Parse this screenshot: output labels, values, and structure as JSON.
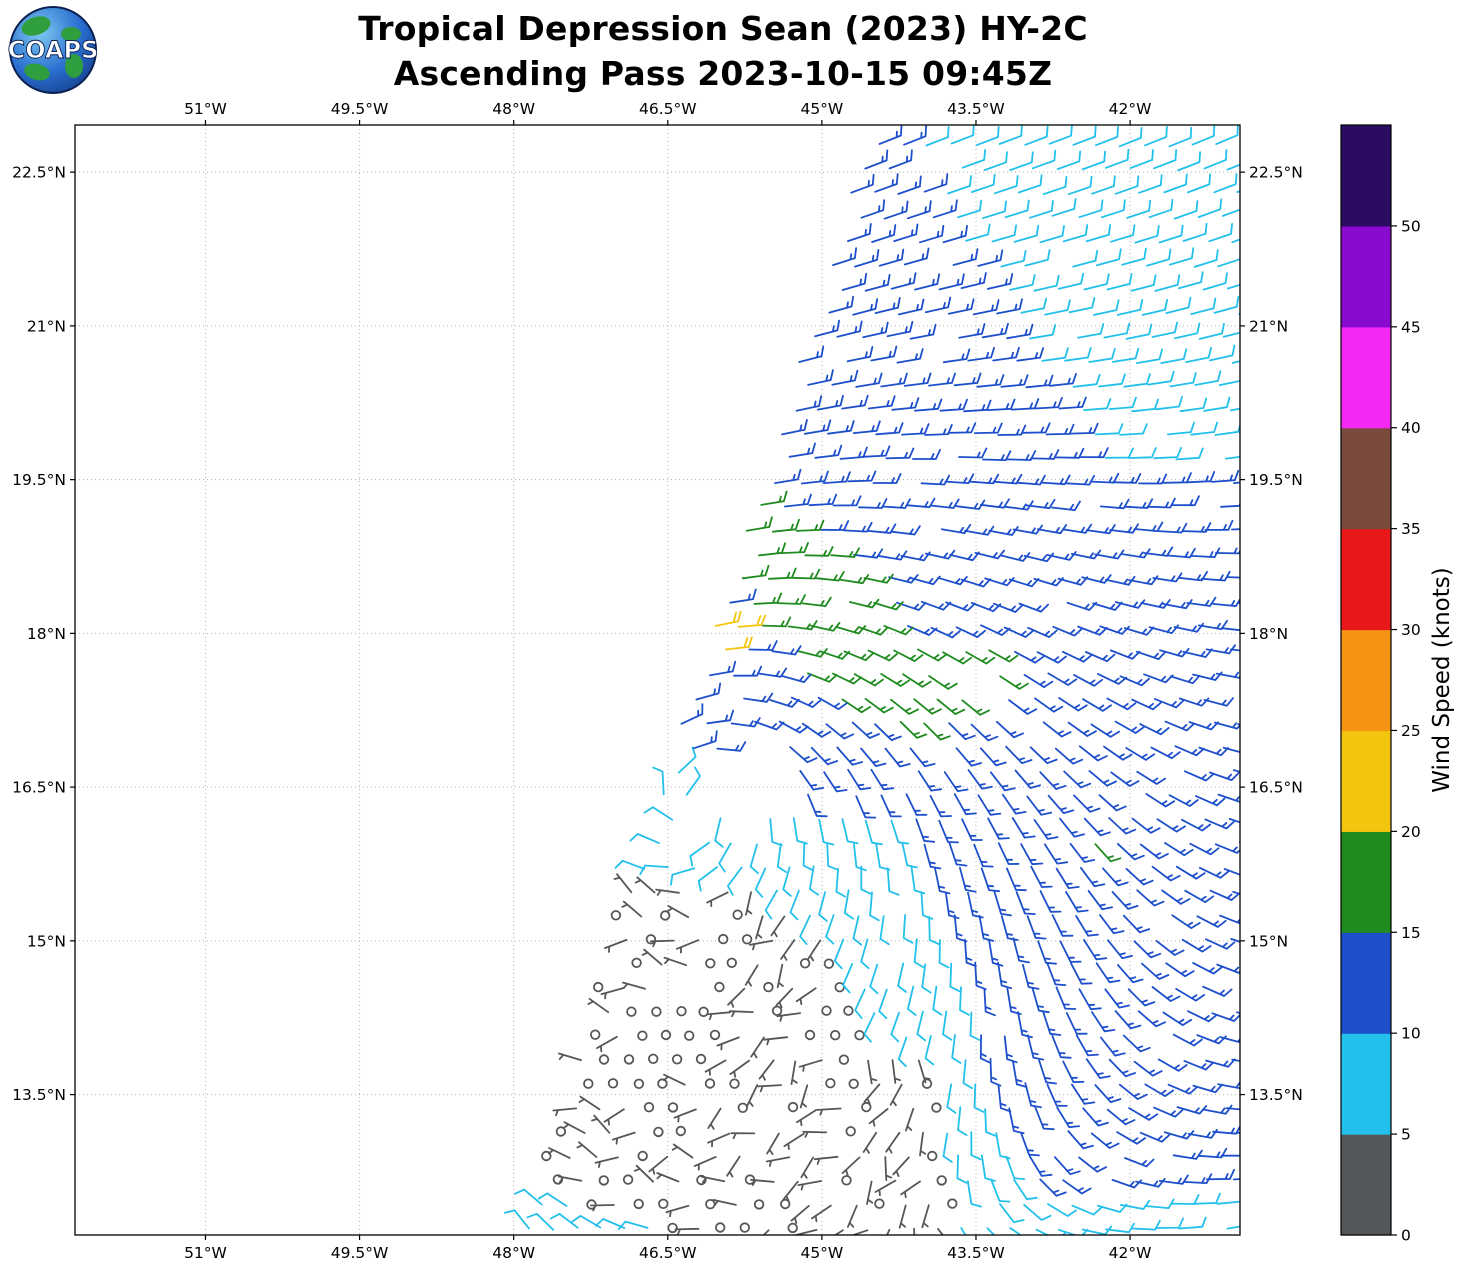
{
  "header": {
    "logo_text": "COAPS",
    "title_line1": "Tropical Depression Sean (2023) HY-2C",
    "title_line2": "Ascending Pass 2023-10-15 09:45Z"
  },
  "axes": {
    "lon_ticks": [
      {
        "label": "51°W",
        "value": 51
      },
      {
        "label": "49.5°W",
        "value": 49.5
      },
      {
        "label": "48°W",
        "value": 48
      },
      {
        "label": "46.5°W",
        "value": 46.5
      },
      {
        "label": "45°W",
        "value": 45
      },
      {
        "label": "43.5°W",
        "value": 43.5
      },
      {
        "label": "42°W",
        "value": 42
      }
    ],
    "lat_ticks": [
      {
        "label": "22.5°N",
        "value": 22.5
      },
      {
        "label": "21°N",
        "value": 21
      },
      {
        "label": "19.5°N",
        "value": 19.5
      },
      {
        "label": "18°N",
        "value": 18
      },
      {
        "label": "16.5°N",
        "value": 16.5
      },
      {
        "label": "15°N",
        "value": 15
      },
      {
        "label": "13.5°N",
        "value": 13.5
      }
    ],
    "lon_range_west": [
      52.27,
      40.93
    ],
    "lat_range": [
      12.13,
      22.96
    ],
    "grid_dotted": true
  },
  "colorbar": {
    "label": "Wind Speed (knots)",
    "tick_values": [
      0,
      5,
      10,
      15,
      20,
      25,
      30,
      35,
      40,
      45,
      50
    ],
    "levels": [
      {
        "min": 0,
        "max": 5,
        "color": "#54575a"
      },
      {
        "min": 5,
        "max": 10,
        "color": "#22c0ea"
      },
      {
        "min": 10,
        "max": 15,
        "color": "#1d4fcb"
      },
      {
        "min": 15,
        "max": 20,
        "color": "#1f8b1f"
      },
      {
        "min": 20,
        "max": 25,
        "color": "#f3c50e"
      },
      {
        "min": 25,
        "max": 30,
        "color": "#f59413"
      },
      {
        "min": 30,
        "max": 35,
        "color": "#e91818"
      },
      {
        "min": 35,
        "max": 40,
        "color": "#7a4a3c"
      },
      {
        "min": 40,
        "max": 45,
        "color": "#f42af4"
      },
      {
        "min": 45,
        "max": 50,
        "color": "#8a0bd0"
      },
      {
        "min": 50,
        "max": 55,
        "color": "#2c0b63"
      }
    ]
  },
  "chart_data": {
    "type": "wind_barb_map",
    "title": "Tropical Depression Sean (2023) HY-2C",
    "subtitle": "Ascending Pass 2023-10-15 09:45Z",
    "satellite": "HY-2C",
    "pass_type": "Ascending",
    "valid_time": "2023-10-15 09:45Z",
    "units": "knots",
    "lon_extent_west_deg": [
      52.27,
      40.93
    ],
    "lat_extent_north_deg": [
      12.13,
      22.96
    ],
    "grid_spacing_deg": 0.235,
    "swath_left_edge": {
      "lat_ref": 23,
      "lon_west_at_lat_ref": 44.55,
      "west_slope_deg_per_deg": 0.312
    },
    "storm_center": {
      "lat": 16.35,
      "lon_west": 46.25
    },
    "circulation_radius_deg": 6,
    "background_flow_from_deg": 60,
    "gap_fraction": 0.05,
    "calm_circle_fraction": 0.45,
    "default_speed_kt": 13,
    "barb_conventions": {
      "half_barb_kt": 5,
      "full_barb_kt": 10,
      "calm_circle_below_kt": 2.5
    },
    "speed_regions": [
      {
        "name": "calm-core",
        "shape": "ellipse",
        "center_lat": 13.95,
        "center_lon_west": 46.4,
        "r_lat": 1.75,
        "r_lon": 1.85,
        "speed_kt": 3
      },
      {
        "name": "calm-south",
        "shape": "ellipse",
        "center_lat": 12.6,
        "center_lon_west": 45.2,
        "r_lat": 1.0,
        "r_lon": 1.55,
        "speed_kt": 3
      },
      {
        "name": "calm-east-patch",
        "shape": "ellipse",
        "center_lat": 13.5,
        "center_lon_west": 44.7,
        "r_lat": 0.55,
        "r_lon": 0.85,
        "speed_kt": 3
      },
      {
        "name": "peak-wind-yellow",
        "shape": "ellipse",
        "center_lat": 17.95,
        "center_lon_west": 46.0,
        "r_lat": 0.35,
        "r_lon": 0.3,
        "speed_kt": 22
      },
      {
        "name": "strong-band-green",
        "shape": "rot_ellipse",
        "center_lat": 18.25,
        "center_lon_west": 45.05,
        "major_lat": 0.72,
        "major_lon": 0.69,
        "r_major": 1.55,
        "r_minor": 0.55,
        "speed_kt": 17
      },
      {
        "name": "green-east-patch",
        "shape": "ellipse",
        "center_lat": 17.6,
        "center_lon_west": 43.6,
        "r_lat": 0.3,
        "r_lon": 0.55,
        "speed_kt": 17
      },
      {
        "name": "green-spot",
        "shape": "ellipse",
        "center_lat": 15.85,
        "center_lon_west": 42.3,
        "r_lat": 0.13,
        "r_lon": 0.2,
        "speed_kt": 17
      },
      {
        "name": "cyan-northeast",
        "shape": "diagonal_ne",
        "a": 30.09,
        "b": 0.62,
        "lat_min": 19.7,
        "speed_kt": 8
      },
      {
        "name": "cyan-south-band",
        "shape": "diag_band",
        "a": 39.7,
        "b": 0.35,
        "half_width": 1.15,
        "lat_max": 16.2,
        "speed_kt": 8
      },
      {
        "name": "cyan-edge-band",
        "shape": "edge_band",
        "lat_min": 15.4,
        "lat_max": 16.8,
        "width": 0.5,
        "speed_kt": 8
      },
      {
        "name": "cyan-bottom-rows",
        "shape": "lat_below",
        "lat_max": 12.6,
        "speed_kt": 8
      }
    ],
    "data_gaps": [
      {
        "center_lat": 16.55,
        "center_lon_west": 45.75,
        "r_lat": 0.4,
        "r_lon": 0.5
      }
    ]
  }
}
